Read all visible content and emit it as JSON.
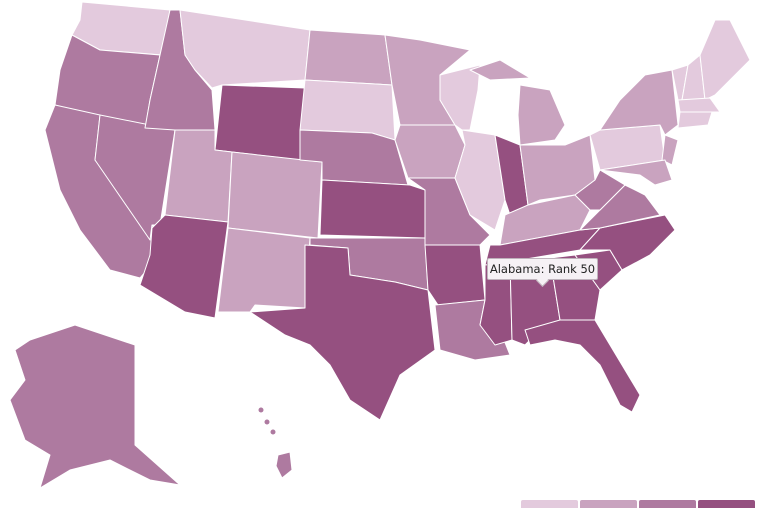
{
  "colors": [
    "#e3cadd",
    "#c9a3bf",
    "#ae7aa0",
    "#955080"
  ],
  "tooltip": {
    "text": "Alabama: Rank 50"
  },
  "states": [
    {
      "name": "Washington",
      "level": 0
    },
    {
      "name": "Oregon",
      "level": 2
    },
    {
      "name": "California",
      "level": 2
    },
    {
      "name": "Nevada",
      "level": 2
    },
    {
      "name": "Idaho",
      "level": 2
    },
    {
      "name": "Montana",
      "level": 0
    },
    {
      "name": "Wyoming",
      "level": 3
    },
    {
      "name": "Utah",
      "level": 1
    },
    {
      "name": "Colorado",
      "level": 1
    },
    {
      "name": "Arizona",
      "level": 3
    },
    {
      "name": "New Mexico",
      "level": 1
    },
    {
      "name": "North Dakota",
      "level": 1
    },
    {
      "name": "South Dakota",
      "level": 0
    },
    {
      "name": "Nebraska",
      "level": 2
    },
    {
      "name": "Kansas",
      "level": 3
    },
    {
      "name": "Oklahoma",
      "level": 2
    },
    {
      "name": "Texas",
      "level": 3
    },
    {
      "name": "Minnesota",
      "level": 1
    },
    {
      "name": "Iowa",
      "level": 1
    },
    {
      "name": "Missouri",
      "level": 2
    },
    {
      "name": "Arkansas",
      "level": 3
    },
    {
      "name": "Louisiana",
      "level": 2
    },
    {
      "name": "Wisconsin",
      "level": 0
    },
    {
      "name": "Illinois",
      "level": 0
    },
    {
      "name": "Michigan",
      "level": 1
    },
    {
      "name": "Michigan Upper",
      "level": 1
    },
    {
      "name": "Indiana",
      "level": 3
    },
    {
      "name": "Ohio",
      "level": 1
    },
    {
      "name": "Kentucky",
      "level": 1
    },
    {
      "name": "Tennessee",
      "level": 3
    },
    {
      "name": "Mississippi",
      "level": 3
    },
    {
      "name": "Alabama",
      "level": 3
    },
    {
      "name": "Georgia",
      "level": 3
    },
    {
      "name": "Florida",
      "level": 3
    },
    {
      "name": "South Carolina",
      "level": 3
    },
    {
      "name": "North Carolina",
      "level": 3
    },
    {
      "name": "Virginia",
      "level": 2
    },
    {
      "name": "West Virginia",
      "level": 2
    },
    {
      "name": "Pennsylvania",
      "level": 0
    },
    {
      "name": "New York",
      "level": 1
    },
    {
      "name": "New Jersey",
      "level": 1
    },
    {
      "name": "Maryland",
      "level": 1
    },
    {
      "name": "Vermont",
      "level": 0
    },
    {
      "name": "New Hampshire",
      "level": 0
    },
    {
      "name": "Maine",
      "level": 0
    },
    {
      "name": "Massachusetts",
      "level": 0
    },
    {
      "name": "Connecticut",
      "level": 0
    },
    {
      "name": "Alaska",
      "level": 2
    },
    {
      "name": "Hawaii",
      "level": 2
    }
  ]
}
